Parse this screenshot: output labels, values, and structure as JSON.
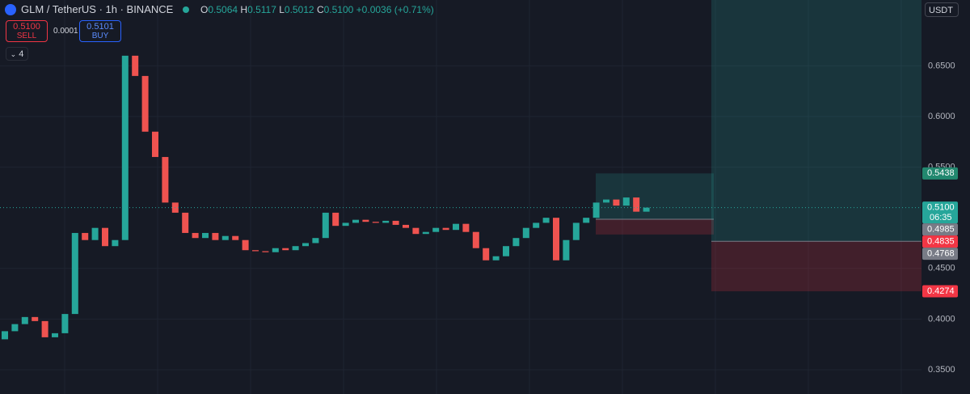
{
  "header": {
    "symbol": "GLM / TetherUS · 1h · BINANCE",
    "o": "O",
    "open": "0.5064",
    "h": "H",
    "high": "0.5117",
    "l": "L",
    "low": "0.5012",
    "c": "C",
    "close": "0.5100",
    "change": "+0.0036 (+0.71%)"
  },
  "trade": {
    "sell_price": "0.5100",
    "sell": "SELL",
    "spread": "0.0001",
    "buy_price": "0.5101",
    "buy": "BUY"
  },
  "indicators": "4",
  "currency": "USDT",
  "chart_data": {
    "type": "candlestick",
    "open": [
      0.38,
      0.388,
      0.395,
      0.402,
      0.398,
      0.382,
      0.386,
      0.405,
      0.485,
      0.478,
      0.49,
      0.472,
      0.478,
      0.66,
      0.64,
      0.585,
      0.56,
      0.515,
      0.505,
      0.485,
      0.48,
      0.485,
      0.478,
      0.482,
      0.478,
      0.468,
      0.467,
      0.466,
      0.47,
      0.468,
      0.472,
      0.475,
      0.48,
      0.505,
      0.492,
      0.495,
      0.498,
      0.496,
      0.495,
      0.497,
      0.493,
      0.49,
      0.484,
      0.486,
      0.49,
      0.488,
      0.494,
      0.486,
      0.47,
      0.458,
      0.462,
      0.472,
      0.48,
      0.49,
      0.495,
      0.5,
      0.458,
      0.478,
      0.495,
      0.5,
      0.515,
      0.518,
      0.512,
      0.52,
      0.506
    ],
    "close": [
      0.388,
      0.395,
      0.402,
      0.398,
      0.382,
      0.386,
      0.405,
      0.485,
      0.478,
      0.49,
      0.472,
      0.478,
      0.66,
      0.64,
      0.585,
      0.56,
      0.515,
      0.505,
      0.485,
      0.48,
      0.485,
      0.478,
      0.482,
      0.478,
      0.468,
      0.467,
      0.466,
      0.47,
      0.468,
      0.472,
      0.475,
      0.48,
      0.505,
      0.492,
      0.495,
      0.498,
      0.496,
      0.495,
      0.497,
      0.493,
      0.49,
      0.484,
      0.486,
      0.49,
      0.488,
      0.494,
      0.486,
      0.47,
      0.458,
      0.462,
      0.472,
      0.48,
      0.49,
      0.495,
      0.5,
      0.458,
      0.478,
      0.495,
      0.5,
      0.515,
      0.518,
      0.512,
      0.52,
      0.506,
      0.51
    ],
    "up_color": "#26a69a",
    "down_color": "#ef5350",
    "ylim": [
      0.326,
      0.715
    ],
    "yticks": [
      {
        "value": 0.35,
        "label": "0.3500"
      },
      {
        "value": 0.4,
        "label": "0.4000"
      },
      {
        "value": 0.45,
        "label": "0.4500"
      },
      {
        "value": 0.55,
        "label": "0.5500"
      },
      {
        "value": 0.6,
        "label": "0.6000"
      },
      {
        "value": 0.65,
        "label": "0.6500"
      }
    ],
    "grid": true,
    "last_price": {
      "value": 0.51,
      "label": "0.5100"
    },
    "countdown": "06:35",
    "positions": [
      {
        "entry": 0.4985,
        "target": 0.5438,
        "stop": 0.4835
      },
      {
        "entry": 0.4768,
        "stop": 0.4274
      }
    ]
  }
}
